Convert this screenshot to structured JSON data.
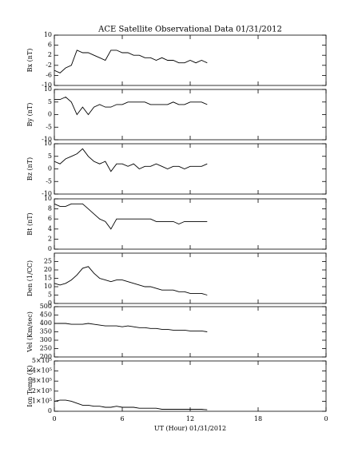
{
  "chart_data": [
    {
      "type": "line",
      "title": "ACE Satellite Observational Data   01/31/2012",
      "ylabel": "Bx (nT)",
      "color": "#000000",
      "x": [
        0,
        0.5,
        1,
        1.5,
        2,
        2.5,
        3,
        3.5,
        4,
        4.5,
        5,
        5.5,
        6,
        6.5,
        7,
        7.5,
        8,
        8.5,
        9,
        9.5,
        10,
        10.5,
        11,
        11.5,
        12,
        12.5,
        13,
        13.5
      ],
      "values": [
        -4,
        -5,
        -3,
        -2,
        4,
        3,
        3,
        2,
        1,
        0,
        4,
        4,
        3,
        3,
        2,
        2,
        1,
        1,
        0,
        1,
        0,
        0,
        -1,
        -1,
        0,
        -1,
        0,
        -1
      ],
      "xlim": [
        0,
        24
      ],
      "xticks": [
        0,
        6,
        12,
        18,
        24
      ],
      "ylim": [
        -10,
        10
      ],
      "yticks": [
        -10,
        -6,
        -2,
        2,
        6,
        10
      ]
    },
    {
      "type": "line",
      "ylabel": "By (nT)",
      "color": "#000000",
      "x": [
        0,
        0.5,
        1,
        1.5,
        2,
        2.5,
        3,
        3.5,
        4,
        4.5,
        5,
        5.5,
        6,
        6.5,
        7,
        7.5,
        8,
        8.5,
        9,
        9.5,
        10,
        10.5,
        11,
        11.5,
        12,
        12.5,
        13,
        13.5
      ],
      "values": [
        6,
        6,
        7,
        5,
        0,
        3,
        0,
        3,
        4,
        3,
        3,
        4,
        4,
        5,
        5,
        5,
        5,
        4,
        4,
        4,
        4,
        5,
        4,
        4,
        5,
        5,
        5,
        4
      ],
      "xlim": [
        0,
        24
      ],
      "xticks": [
        0,
        6,
        12,
        18,
        24
      ],
      "ylim": [
        -10,
        10
      ],
      "yticks": [
        -10,
        -5,
        0,
        5,
        10
      ]
    },
    {
      "type": "line",
      "ylabel": "Bz (nT)",
      "color": "#000000",
      "x": [
        0,
        0.5,
        1,
        1.5,
        2,
        2.5,
        3,
        3.5,
        4,
        4.5,
        5,
        5.5,
        6,
        6.5,
        7,
        7.5,
        8,
        8.5,
        9,
        9.5,
        10,
        10.5,
        11,
        11.5,
        12,
        12.5,
        13,
        13.5
      ],
      "values": [
        3,
        2,
        4,
        5,
        6,
        8,
        5,
        3,
        2,
        3,
        -1,
        2,
        2,
        1,
        2,
        0,
        1,
        1,
        2,
        1,
        0,
        1,
        1,
        0,
        1,
        1,
        1,
        2
      ],
      "xlim": [
        0,
        24
      ],
      "xticks": [
        0,
        6,
        12,
        18,
        24
      ],
      "ylim": [
        -10,
        10
      ],
      "yticks": [
        -10,
        -5,
        0,
        5,
        10
      ]
    },
    {
      "type": "line",
      "ylabel": "Bt (nT)",
      "color": "#000000",
      "x": [
        0,
        0.5,
        1,
        1.5,
        2,
        2.5,
        3,
        3.5,
        4,
        4.5,
        5,
        5.5,
        6,
        6.5,
        7,
        7.5,
        8,
        8.5,
        9,
        9.5,
        10,
        10.5,
        11,
        11.5,
        12,
        12.5,
        13,
        13.5
      ],
      "values": [
        9,
        8.5,
        8.5,
        9,
        9,
        9,
        8,
        7,
        6,
        5.5,
        4,
        6,
        6,
        6,
        6,
        6,
        6,
        6,
        5.5,
        5.5,
        5.5,
        5.5,
        5,
        5.5,
        5.5,
        5.5,
        5.5,
        5.5
      ],
      "xlim": [
        0,
        24
      ],
      "xticks": [
        0,
        6,
        12,
        18,
        24
      ],
      "ylim": [
        0,
        10
      ],
      "yticks": [
        0,
        2,
        4,
        6,
        8,
        10
      ]
    },
    {
      "type": "line",
      "ylabel": "Den (1/CC)",
      "color": "#000000",
      "x": [
        0,
        0.5,
        1,
        1.5,
        2,
        2.5,
        3,
        3.5,
        4,
        4.5,
        5,
        5.5,
        6,
        6.5,
        7,
        7.5,
        8,
        8.5,
        9,
        9.5,
        10,
        10.5,
        11,
        11.5,
        12,
        12.5,
        13,
        13.5
      ],
      "values": [
        12,
        11,
        12,
        14,
        17,
        21,
        22,
        18,
        15,
        14,
        13,
        14,
        14,
        13,
        12,
        11,
        10,
        10,
        9,
        8,
        8,
        8,
        7,
        7,
        6,
        6,
        6,
        5
      ],
      "xlim": [
        0,
        24
      ],
      "xticks": [
        0,
        6,
        12,
        18,
        24
      ],
      "ylim": [
        0,
        30
      ],
      "yticks": [
        0,
        5,
        10,
        15,
        20,
        25
      ]
    },
    {
      "type": "line",
      "ylabel": "Vel (Km/sec)",
      "color": "#000000",
      "x": [
        0,
        0.5,
        1,
        1.5,
        2,
        2.5,
        3,
        3.5,
        4,
        4.5,
        5,
        5.5,
        6,
        6.5,
        7,
        7.5,
        8,
        8.5,
        9,
        9.5,
        10,
        10.5,
        11,
        11.5,
        12,
        12.5,
        13,
        13.5
      ],
      "values": [
        400,
        400,
        400,
        395,
        395,
        395,
        400,
        395,
        390,
        385,
        385,
        385,
        380,
        385,
        380,
        375,
        375,
        370,
        370,
        365,
        365,
        360,
        360,
        360,
        355,
        355,
        355,
        350
      ],
      "xlim": [
        0,
        24
      ],
      "xticks": [
        0,
        6,
        12,
        18,
        24
      ],
      "ylim": [
        200,
        500
      ],
      "yticks": [
        200,
        250,
        300,
        350,
        400,
        450,
        500
      ]
    },
    {
      "type": "line",
      "ylabel": "Ion Temp (K)",
      "xlabel": "UT (Hour)  01/31/2012",
      "color": "#000000",
      "x": [
        0,
        0.5,
        1,
        1.5,
        2,
        2.5,
        3,
        3.5,
        4,
        4.5,
        5,
        5.5,
        6,
        6.5,
        7,
        7.5,
        8,
        8.5,
        9,
        9.5,
        10,
        10.5,
        11,
        11.5,
        12,
        12.5,
        13,
        13.5
      ],
      "values": [
        100000,
        110000,
        110000,
        100000,
        80000,
        60000,
        60000,
        50000,
        50000,
        40000,
        40000,
        50000,
        40000,
        40000,
        40000,
        30000,
        30000,
        30000,
        30000,
        20000,
        20000,
        20000,
        20000,
        20000,
        20000,
        20000,
        20000,
        15000
      ],
      "xlim": [
        0,
        24
      ],
      "xticks": [
        0,
        6,
        12,
        {
          "value": 18,
          "label": "18"
        },
        {
          "value": 24,
          "label": "0"
        }
      ],
      "xtick_labels_shown": true,
      "ylim": [
        0,
        500000
      ],
      "yticks": [
        0,
        {
          "value": 100000,
          "label": "1×10⁵"
        },
        {
          "value": 200000,
          "label": "2×10⁵"
        },
        {
          "value": 300000,
          "label": "3×10⁵"
        },
        {
          "value": 400000,
          "label": "4×10⁵"
        },
        {
          "value": 500000,
          "label": "5×10⁵"
        }
      ]
    }
  ]
}
